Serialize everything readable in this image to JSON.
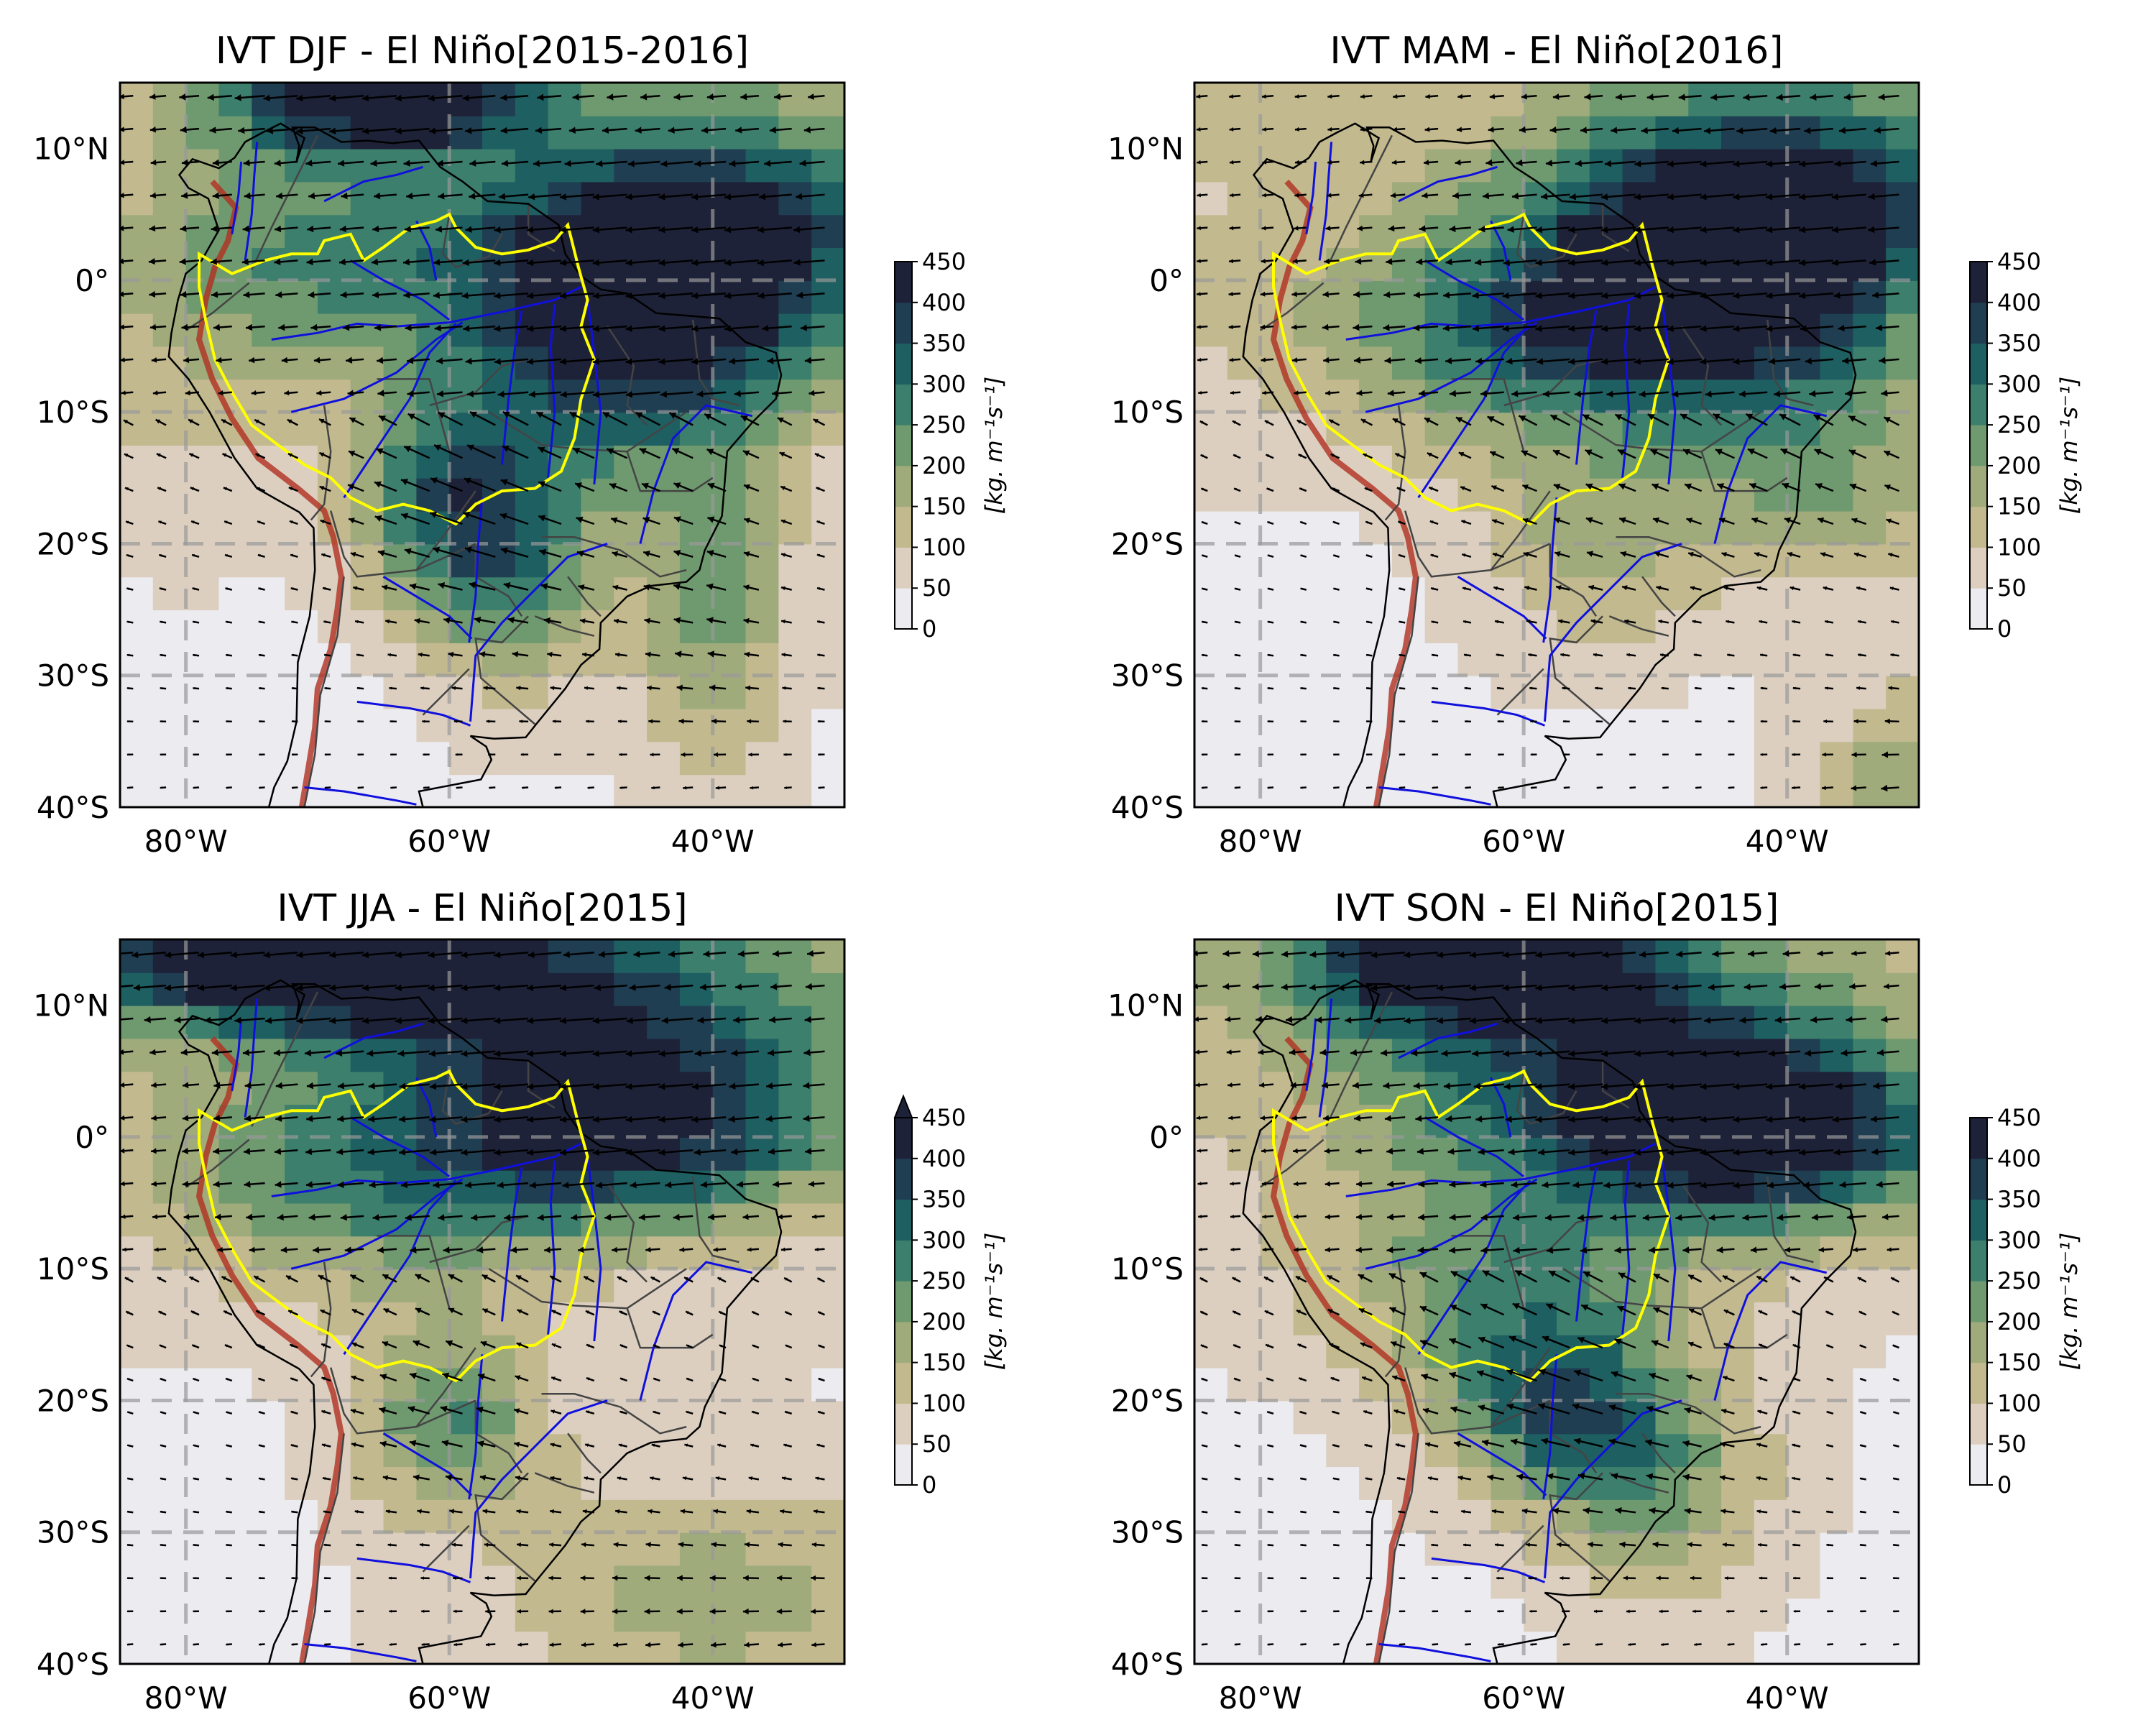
{
  "panels": [
    {
      "title": "IVT DJF - El Niño[2015-2016]",
      "season": "DJF",
      "extend_max": false
    },
    {
      "title": "IVT MAM - El Niño[2016]",
      "season": "MAM",
      "extend_max": false
    },
    {
      "title": "IVT JJA - El Niño[2015]",
      "season": "JJA",
      "extend_max": true
    },
    {
      "title": "IVT SON - El Niño[2015]",
      "season": "SON",
      "extend_max": false
    }
  ],
  "axes": {
    "lon_ticks": [
      "80°W",
      "60°W",
      "40°W"
    ],
    "lat_ticks": [
      "10°N",
      "0°",
      "10°S",
      "20°S",
      "30°S",
      "40°S"
    ],
    "lon_range": [
      -85,
      -30
    ],
    "lat_range": [
      -40,
      15
    ]
  },
  "colorbar": {
    "label": "[kg. m⁻¹s⁻¹]",
    "ticks": [
      "0",
      "50",
      "100",
      "150",
      "200",
      "250",
      "300",
      "350",
      "400",
      "450"
    ],
    "levels": [
      0,
      50,
      100,
      150,
      200,
      250,
      300,
      350,
      400,
      450
    ],
    "colors": [
      "#ecebf0",
      "#dccfc0",
      "#c2b98f",
      "#a0ab7c",
      "#6f9a6f",
      "#3c7f6c",
      "#1e5f62",
      "#1f3e52",
      "#1e2238"
    ]
  },
  "map_colors": {
    "coast": "#000000",
    "states": "#444444",
    "rivers": "#1010dd",
    "basin": "#ffff00",
    "topography": "#b03020",
    "grid": "#999999"
  }
}
